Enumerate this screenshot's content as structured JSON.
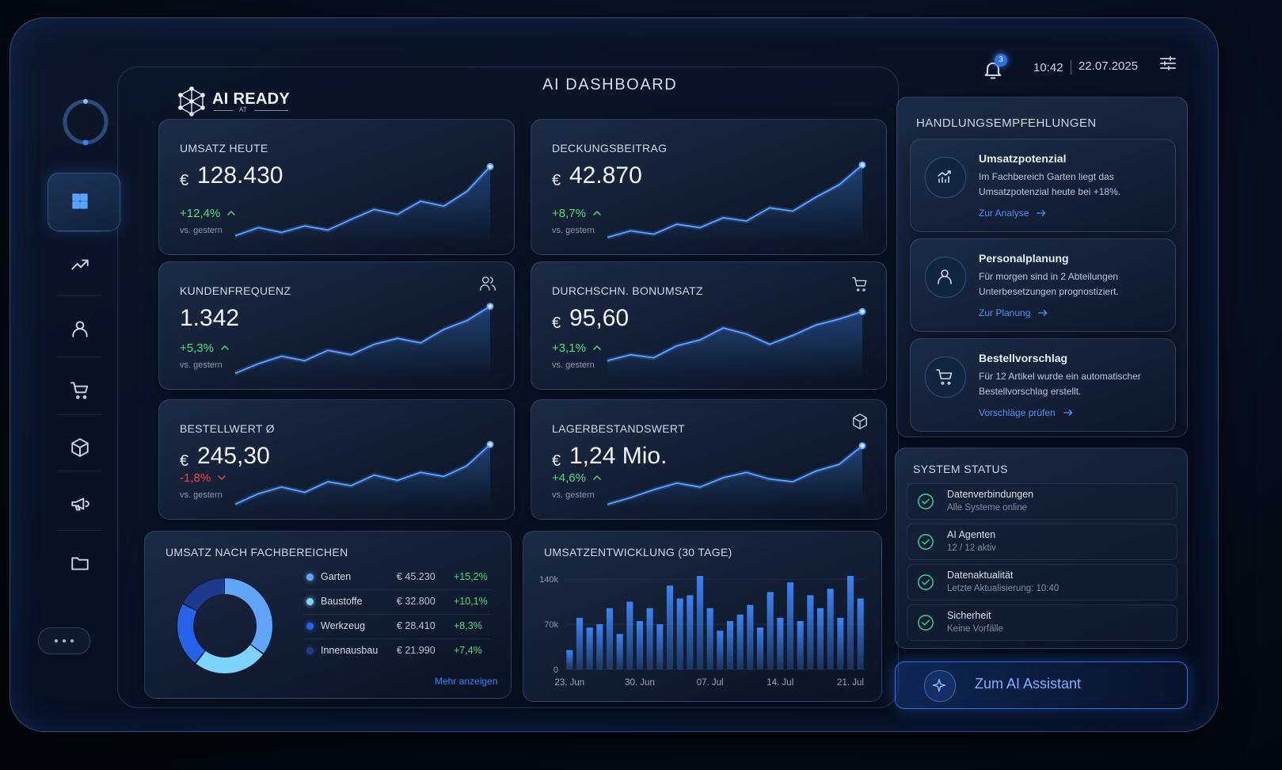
{
  "header": {
    "logo": "AI READY",
    "logo_sub": "AT",
    "title": "AI DASHBOARD",
    "notifications": 3,
    "time": "10:42",
    "date": "22.07.2025"
  },
  "kpis": [
    {
      "title": "UMSATZ HEUTE",
      "currency": "€",
      "value": "128.430",
      "change": "+12,4%",
      "note": "vs. gestern",
      "trend": [
        8,
        18,
        12,
        20,
        15,
        28,
        40,
        34,
        50,
        44,
        62,
        92
      ]
    },
    {
      "title": "DECKUNGSBEITRAG",
      "currency": "€",
      "value": "42.870",
      "change": "+8,7%",
      "note": "vs. gestern",
      "trend": [
        6,
        14,
        10,
        22,
        18,
        30,
        26,
        42,
        38,
        55,
        70,
        94
      ]
    },
    {
      "title": "KUNDENFREQUENZ",
      "currency": null,
      "value": "1.342",
      "change": "+5,3%",
      "note": "vs. gestern",
      "trend": [
        5,
        18,
        28,
        22,
        36,
        30,
        44,
        52,
        46,
        64,
        76,
        95
      ]
    },
    {
      "title": "DURCHSCHN. BONUMSATZ",
      "currency": "€",
      "value": "95,60",
      "change": "+3,1%",
      "note": "vs. gestern",
      "trend": [
        22,
        30,
        26,
        42,
        50,
        66,
        58,
        44,
        56,
        70,
        78,
        88
      ]
    },
    {
      "title": "BESTELLWERT Ø",
      "currency": "€",
      "value": "245,30",
      "change": "-1,8%",
      "note": "vs. gestern",
      "trend": [
        4,
        20,
        30,
        22,
        38,
        32,
        48,
        40,
        52,
        46,
        62,
        94
      ]
    },
    {
      "title": "LAGERBESTANDSWERT",
      "currency": "€",
      "value": "1,24 Mio.",
      "change": "+4,6%",
      "note": "vs. gestern",
      "trend": [
        4,
        14,
        26,
        36,
        30,
        44,
        52,
        42,
        38,
        54,
        64,
        92
      ]
    }
  ],
  "revenue_by_area": {
    "title": "UMSATZ NACH FACHBEREICHEN",
    "categories": [
      "Garten",
      "Baustoffe",
      "Werkzeug",
      "Innenausbau"
    ],
    "values": [
      45230,
      32800,
      28410,
      21990
    ],
    "value_labels": [
      "€ 45.230",
      "€ 32.800",
      "€ 28.410",
      "€ 21.990"
    ],
    "changes": [
      "+15,2%",
      "+10,1%",
      "+8,3%",
      "+7,4%"
    ],
    "colors": [
      "#60a5fa",
      "#7dd3fc",
      "#2563eb",
      "#1e3a8a"
    ],
    "more": "Mehr anzeigen"
  },
  "revenue_30d": {
    "type": "bar",
    "title": "UMSATZENTWICKLUNG (30 TAGE)",
    "categories": [
      "23. Jun",
      null,
      null,
      null,
      null,
      null,
      null,
      "30. Jun",
      null,
      null,
      null,
      null,
      null,
      null,
      "07. Jul",
      null,
      null,
      null,
      null,
      null,
      null,
      "14. Jul",
      null,
      null,
      null,
      null,
      null,
      null,
      "21. Jul",
      null
    ],
    "values": [
      30000,
      80000,
      65000,
      70000,
      95000,
      55000,
      105000,
      75000,
      95000,
      70000,
      130000,
      110000,
      115000,
      145000,
      95000,
      60000,
      75000,
      85000,
      100000,
      65000,
      120000,
      80000,
      135000,
      75000,
      115000,
      95000,
      125000,
      80000,
      145000,
      110000
    ],
    "color": "#3b82f6",
    "ylim": [
      0,
      150000
    ],
    "yticks": [
      0,
      {
        "value": 70000,
        "label": "70k"
      },
      {
        "value": 140000,
        "label": "140k"
      }
    ]
  },
  "recommendations": {
    "title": "HANDLUNGSEMPFEHLUNGEN",
    "items": [
      {
        "title": "Umsatzpotenzial",
        "text": "Im Fachbereich Garten liegt das Umsatzpotenzial heute bei +18%.",
        "link": "Zur Analyse"
      },
      {
        "title": "Personalplanung",
        "text": "Für morgen sind in 2 Abteilungen Unterbesetzungen prognostiziert.",
        "link": "Zur Planung"
      },
      {
        "title": "Bestellvorschlag",
        "text": "Für 12 Artikel wurde ein automatischer Bestellvorschlag erstellt.",
        "link": "Vorschläge prüfen"
      }
    ]
  },
  "status": {
    "title": "SYSTEM STATUS",
    "items": [
      {
        "name": "Datenverbindungen",
        "detail": "Alle Systeme online"
      },
      {
        "name": "AI Agenten",
        "detail": "12 / 12 aktiv"
      },
      {
        "name": "Datenaktualität",
        "detail": "Letzte Aktualisierung: 10:40"
      },
      {
        "name": "Sicherheit",
        "detail": "Keine Vorfälle"
      }
    ]
  },
  "assistant_button": "Zum AI Assistant"
}
